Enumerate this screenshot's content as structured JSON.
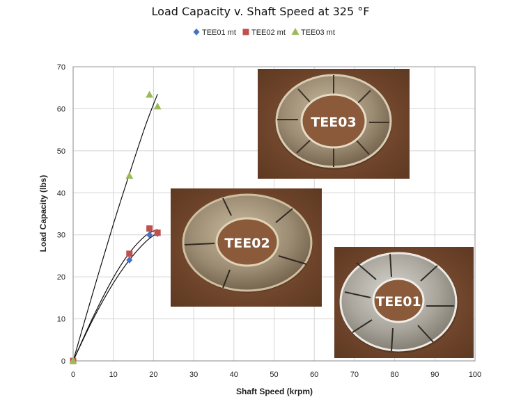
{
  "chart_data": {
    "type": "scatter",
    "title": "Load Capacity v. Shaft Speed at 325 °F",
    "xlabel": "Shaft Speed (krpm)",
    "ylabel": "Load Capacity (lbs)",
    "xlim": [
      0,
      100
    ],
    "ylim": [
      0,
      70
    ],
    "xticks": [
      0,
      10,
      20,
      30,
      40,
      50,
      60,
      70,
      80,
      90,
      100
    ],
    "yticks": [
      0,
      10,
      20,
      30,
      40,
      50,
      60,
      70
    ],
    "grid": true,
    "legend_position": "top-center",
    "series": [
      {
        "name": "TEE01 mt",
        "marker": "diamond",
        "color": "#4472c4",
        "x": [
          0,
          14,
          19,
          21
        ],
        "y": [
          0,
          24,
          30,
          30.3
        ]
      },
      {
        "name": "TEE02 mt",
        "marker": "square",
        "color": "#c0504d",
        "x": [
          0,
          14,
          19,
          21
        ],
        "y": [
          0,
          25.5,
          31.5,
          30.5
        ]
      },
      {
        "name": "TEE03 mt",
        "marker": "triangle",
        "color": "#9bbb59",
        "x": [
          0,
          14,
          19,
          21
        ],
        "y": [
          0,
          44,
          63.3,
          60.5
        ]
      }
    ],
    "trendlines": [
      {
        "series": "TEE01 mt",
        "x": [
          0,
          5,
          10,
          14,
          18,
          21
        ],
        "y": [
          0,
          10,
          18.5,
          24,
          28.3,
          30.5
        ]
      },
      {
        "series": "TEE02 mt",
        "x": [
          0,
          5,
          10,
          14,
          18,
          21
        ],
        "y": [
          0,
          10.5,
          19.8,
          25.7,
          29.8,
          31.3
        ]
      },
      {
        "series": "TEE03 mt",
        "x": [
          0,
          5,
          10,
          14,
          18,
          21
        ],
        "y": [
          0,
          16.5,
          32.5,
          44.5,
          56,
          63.5
        ]
      }
    ],
    "photo_labels": [
      "TEE03",
      "TEE02",
      "TEE01"
    ]
  }
}
